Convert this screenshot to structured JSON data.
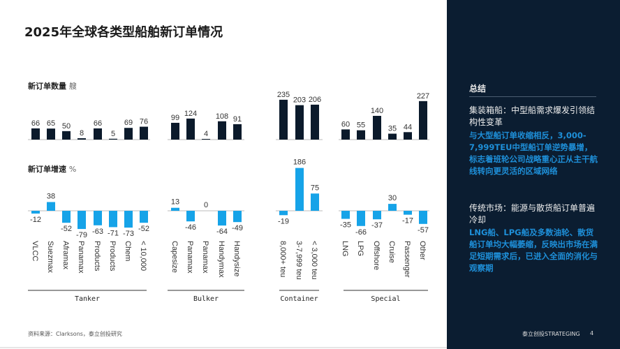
{
  "title": "2025年全球各类型船舶新订单情况",
  "chart_data": [
    {
      "type": "bar",
      "title": "新订单数量",
      "unit": "艘",
      "categories": [
        "VLCC",
        "Suezmax",
        "Aframax",
        "Panamax",
        "Products",
        "Products",
        "Chem",
        "< 10,000",
        "Capesize",
        "Panamax",
        "Panamax",
        "Handymax",
        "Handysize",
        "8,000+ teu",
        "3-7,999 teu",
        "< 3,000 teu",
        "LNG",
        "LPG",
        "Offshore",
        "Cruise",
        "Passenger",
        "Other"
      ],
      "groups": [
        {
          "name": "Tanker",
          "count": 8
        },
        {
          "name": "Bulker",
          "count": 5
        },
        {
          "name": "Container",
          "count": 3
        },
        {
          "name": "Special",
          "count": 6
        }
      ],
      "values": [
        66,
        65,
        50,
        8,
        66,
        5,
        69,
        76,
        99,
        124,
        4,
        108,
        91,
        235,
        203,
        206,
        60,
        55,
        140,
        35,
        44,
        227
      ],
      "color": "#0b1a2b"
    },
    {
      "type": "bar",
      "title": "新订单增速",
      "unit": "%",
      "values": [
        -12,
        38,
        -52,
        -79,
        -63,
        -71,
        -73,
        -52,
        13,
        -46,
        0,
        -64,
        -49,
        -19,
        186,
        75,
        -35,
        -66,
        -37,
        30,
        -17,
        -57
      ],
      "color": "#16a3e8"
    }
  ],
  "panel": {
    "title": "总结",
    "h1": "集装箱船：中型船需求爆发引领结构性变革",
    "b1": "与大型船订单收缩相反，3,000-7,999TEU中型船订单逆势暴增，标志着班轮公司战略重心正从主干航线转向更灵活的区域网络",
    "h2": "传统市场：能源与散货船订单普遍冷却",
    "b2": "LNG船、LPG船及多数油轮、散货船订单均大幅萎缩，反映出市场在满足短期需求后，已进入全面的消化与观察期"
  },
  "footer": {
    "source": "资料来源：Clarksons，泰立创投研究",
    "brand": "泰立创投STRATEGING",
    "page": "4"
  }
}
